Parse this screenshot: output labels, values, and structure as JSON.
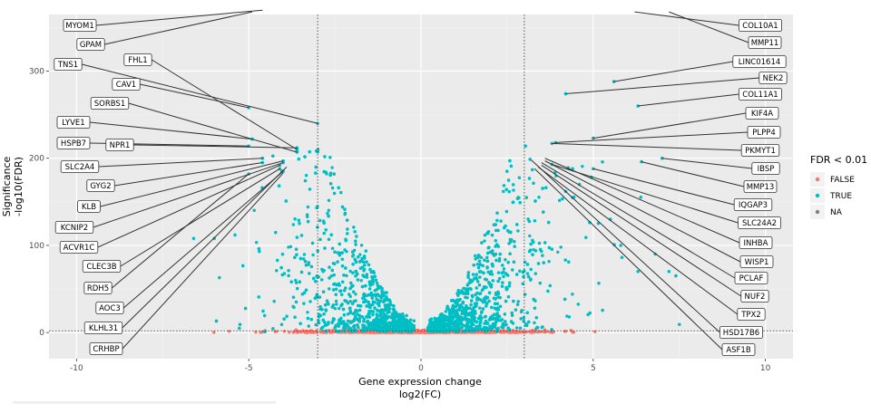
{
  "chart_data": {
    "type": "scatter",
    "xlabel": [
      "Gene expression change",
      "log2(FC)"
    ],
    "ylabel": [
      "Significance",
      "-log10(FDR)"
    ],
    "xlim": [
      -10.8,
      10.8
    ],
    "ylim": [
      -30,
      365
    ],
    "x_ticks": [
      -10,
      -5,
      0,
      5,
      10
    ],
    "x_tick_labels": [
      "-10",
      "-5",
      "0",
      "5",
      "10"
    ],
    "y_ticks": [
      0,
      100,
      200,
      300
    ],
    "y_tick_labels": [
      "0",
      "100",
      "200",
      "300"
    ],
    "thresholds": {
      "fc_vlines": [
        -3,
        3
      ],
      "fdr_hline": 2
    },
    "grid": true,
    "legend": {
      "title": "FDR < 0.01",
      "position": "right",
      "entries": [
        {
          "label": "FALSE",
          "color": "#F8766D"
        },
        {
          "label": "TRUE",
          "color": "#00BFC4"
        },
        {
          "label": "NA",
          "color": "#7F7F7F"
        }
      ]
    },
    "highlighted_points": [
      {
        "x": -4.6,
        "y": 370
      },
      {
        "x": -4.9,
        "y": 368
      },
      {
        "x": -3.0,
        "y": 240
      },
      {
        "x": -5.0,
        "y": 258
      },
      {
        "x": -3.6,
        "y": 212
      },
      {
        "x": -3.6,
        "y": 209
      },
      {
        "x": -3.6,
        "y": 207
      },
      {
        "x": -4.9,
        "y": 222
      },
      {
        "x": -5.0,
        "y": 214
      },
      {
        "x": -4.6,
        "y": 200
      },
      {
        "x": -4.6,
        "y": 195
      },
      {
        "x": -4.0,
        "y": 197
      },
      {
        "x": -4.0,
        "y": 195
      },
      {
        "x": -4.1,
        "y": 192
      },
      {
        "x": -4.1,
        "y": 188
      },
      {
        "x": -5.0,
        "y": 182
      },
      {
        "x": -4.0,
        "y": 185
      },
      {
        "x": 6.2,
        "y": 368
      },
      {
        "x": 7.2,
        "y": 368
      },
      {
        "x": 5.6,
        "y": 288
      },
      {
        "x": 4.2,
        "y": 274
      },
      {
        "x": 6.3,
        "y": 260
      },
      {
        "x": 5.0,
        "y": 223
      },
      {
        "x": 3.9,
        "y": 218
      },
      {
        "x": 3.8,
        "y": 217
      },
      {
        "x": 7.0,
        "y": 200
      },
      {
        "x": 6.4,
        "y": 196
      },
      {
        "x": 5.0,
        "y": 188
      },
      {
        "x": 3.8,
        "y": 193
      },
      {
        "x": 4.6,
        "y": 170
      },
      {
        "x": 4.2,
        "y": 162
      },
      {
        "x": 4.4,
        "y": 155
      },
      {
        "x": 5.5,
        "y": 130
      },
      {
        "x": 5.8,
        "y": 100
      },
      {
        "x": 6.8,
        "y": 90
      },
      {
        "x": 7.2,
        "y": 70
      },
      {
        "x": 7.4,
        "y": 65
      },
      {
        "x": 6.3,
        "y": 70
      },
      {
        "x": -6.6,
        "y": 108
      },
      {
        "x": -6.0,
        "y": 108
      },
      {
        "x": -5.4,
        "y": 112
      }
    ],
    "labels": [
      {
        "gene": "MYOM1",
        "x": -4.6,
        "y": 370
      },
      {
        "gene": "GPAM",
        "x": -4.9,
        "y": 368
      },
      {
        "gene": "TNS1",
        "x": -3.0,
        "y": 240
      },
      {
        "gene": "FHL1",
        "x": -3.6,
        "y": 210
      },
      {
        "gene": "CAV1",
        "x": -5.0,
        "y": 258
      },
      {
        "gene": "SORBS1",
        "x": -3.6,
        "y": 207
      },
      {
        "gene": "LYVE1",
        "x": -4.9,
        "y": 222
      },
      {
        "gene": "HSPB7",
        "x": -5.0,
        "y": 214
      },
      {
        "gene": "NPR1",
        "x": -3.6,
        "y": 212
      },
      {
        "gene": "SLC2A4",
        "x": -4.6,
        "y": 200
      },
      {
        "gene": "GYG2",
        "x": -4.6,
        "y": 195
      },
      {
        "gene": "KLB",
        "x": -4.0,
        "y": 197
      },
      {
        "gene": "KCNIP2",
        "x": -4.0,
        "y": 195
      },
      {
        "gene": "ACVR1C",
        "x": -4.1,
        "y": 192
      },
      {
        "gene": "CLEC3B",
        "x": -4.1,
        "y": 188
      },
      {
        "gene": "RDH5",
        "x": -5.0,
        "y": 182
      },
      {
        "gene": "AOC3",
        "x": -4.0,
        "y": 185
      },
      {
        "gene": "KLHL31",
        "x": -3.9,
        "y": 190
      },
      {
        "gene": "CRHBP",
        "x": -4.0,
        "y": 183
      },
      {
        "gene": "COL10A1",
        "x": 6.2,
        "y": 368
      },
      {
        "gene": "MMP11",
        "x": 7.2,
        "y": 368
      },
      {
        "gene": "LINC01614",
        "x": 5.6,
        "y": 288
      },
      {
        "gene": "NEK2",
        "x": 4.2,
        "y": 274
      },
      {
        "gene": "COL11A1",
        "x": 6.3,
        "y": 260
      },
      {
        "gene": "KIF4A",
        "x": 5.0,
        "y": 223
      },
      {
        "gene": "PLPP4",
        "x": 3.9,
        "y": 218
      },
      {
        "gene": "PKMYT1",
        "x": 3.8,
        "y": 217
      },
      {
        "gene": "IBSP",
        "x": 7.0,
        "y": 200
      },
      {
        "gene": "MMP13",
        "x": 6.4,
        "y": 196
      },
      {
        "gene": "IQGAP3",
        "x": 5.0,
        "y": 188
      },
      {
        "gene": "SLC24A2",
        "x": 3.8,
        "y": 193
      },
      {
        "gene": "INHBA",
        "x": 3.6,
        "y": 200
      },
      {
        "gene": "WISP1",
        "x": 3.6,
        "y": 197
      },
      {
        "gene": "PCLAF",
        "x": 3.5,
        "y": 195
      },
      {
        "gene": "NUF2",
        "x": 3.5,
        "y": 192
      },
      {
        "gene": "TPX2",
        "x": 3.4,
        "y": 190
      },
      {
        "gene": "HSD17B6",
        "x": 3.2,
        "y": 198
      },
      {
        "gene": "ASF1B",
        "x": 3.3,
        "y": 188
      }
    ]
  }
}
